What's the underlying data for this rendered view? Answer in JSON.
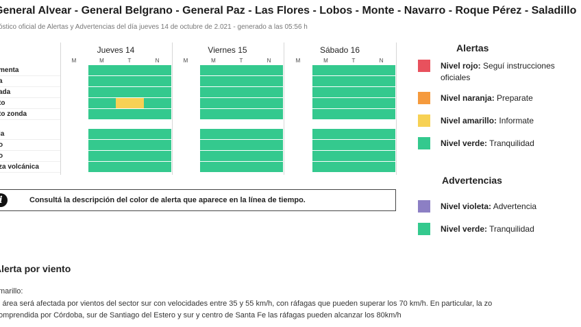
{
  "header": {
    "title": "General Alvear - General Belgrano - General Paz - Las Flores - Lobos - Monte - Navarro - Roque Pérez - Saladillo",
    "subtitle": "óstico oficial de Alertas y Advertencias del día jueves 14 de octubre de 2.021 - generado a las 05:56 h"
  },
  "timeline": {
    "days": [
      "Jueves 14",
      "Viernes 15",
      "Sábado 16"
    ],
    "slots": [
      "M",
      "M",
      "T",
      "N"
    ],
    "group1": [
      "menta",
      "a",
      "ada",
      "to",
      "to zonda"
    ],
    "group2": [
      "la",
      "o",
      "o",
      "za volcánica"
    ],
    "highlight": {
      "row": "to",
      "day": "Jueves 14",
      "slot": "T",
      "color": "#f7d154"
    },
    "colors": {
      "green": "#34c98e",
      "yellow": "#f7d154"
    }
  },
  "info": {
    "icon": "info-icon",
    "text": "Consultá la descripción del color de alerta que aparece en la línea de tiempo."
  },
  "legend": {
    "alertas_title": "Alertas",
    "alertas": [
      {
        "color": "#e8515d",
        "name": "Nivel rojo:",
        "desc": "Seguí instrucciones oficiales"
      },
      {
        "color": "#f59a3d",
        "name": "Nivel naranja:",
        "desc": "Preparate"
      },
      {
        "color": "#f7d154",
        "name": "Nivel amarillo:",
        "desc": "Informate"
      },
      {
        "color": "#34c98e",
        "name": "Nivel verde:",
        "desc": "Tranquilidad"
      }
    ],
    "advertencias_title": "Advertencias",
    "advertencias": [
      {
        "color": "#8c7fc4",
        "name": "Nivel violeta:",
        "desc": "Advertencia"
      },
      {
        "color": "#34c98e",
        "name": "Nivel verde:",
        "desc": "Tranquilidad"
      }
    ]
  },
  "alert_detail": {
    "heading": "Alerta por viento",
    "level": "marillo:",
    "line1": "l área será afectada por vientos del sector sur con velocidades entre 35 y 55 km/h, con ráfagas que pueden superar los 70 km/h. En particular, la zo",
    "line2": "omprendida por Córdoba, sur de Santiago del Estero y sur y centro de Santa Fe las ráfagas pueden alcanzar los 80km/h"
  }
}
